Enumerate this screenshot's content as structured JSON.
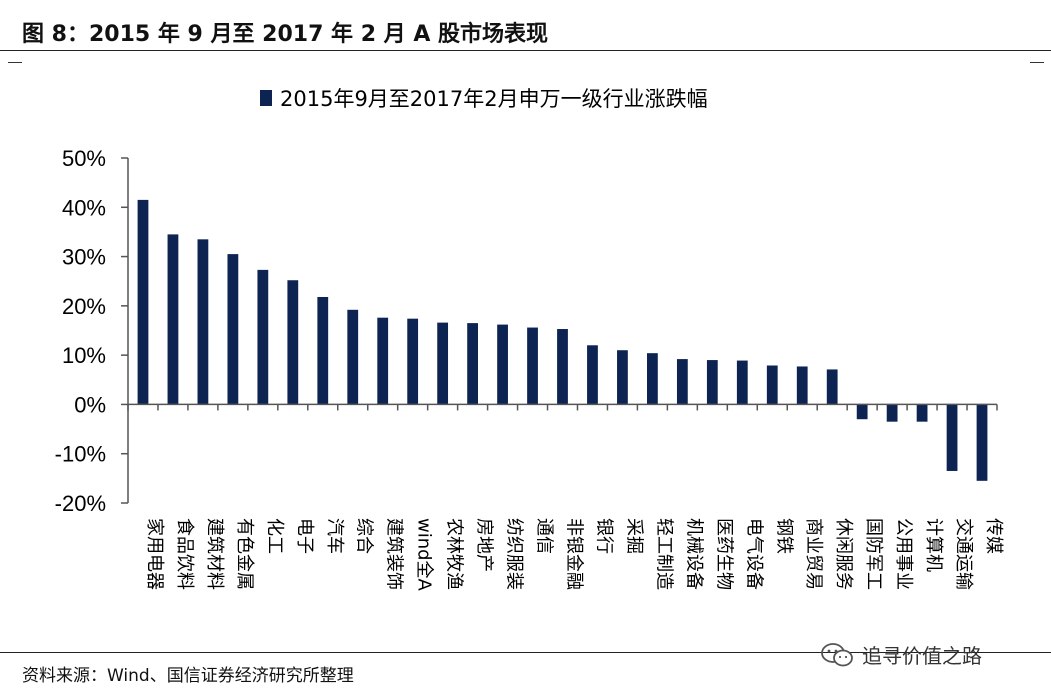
{
  "figure": {
    "title": "图 8：2015 年 9 月至 2017 年 2 月 A 股市场表现",
    "source": "资料来源：Wind、国信证券经济研究所整理",
    "watermark": "追寻价值之路",
    "watermark_icon": "wechat-icon"
  },
  "chart_data": {
    "type": "bar",
    "legend_position": "top-center",
    "grid": false,
    "color": "#0d2453",
    "series": [
      {
        "name": "2015年9月至2017年2月申万一级行业涨跌幅",
        "values": [
          41.5,
          34.5,
          33.5,
          30.5,
          27.3,
          25.2,
          21.8,
          19.2,
          17.6,
          17.4,
          16.6,
          16.5,
          16.2,
          15.6,
          15.3,
          12.0,
          11.0,
          10.4,
          9.2,
          9.0,
          8.9,
          7.9,
          7.7,
          7.1,
          -3.0,
          -3.5,
          -3.5,
          -13.5,
          -15.5
        ]
      }
    ],
    "categories": [
      "家用电器",
      "食品饮料",
      "建筑材料",
      "有色金属",
      "化工",
      "电子",
      "汽车",
      "综合",
      "建筑装饰",
      "wind全A",
      "农林牧渔",
      "房地产",
      "纺织服装",
      "通信",
      "非银金融",
      "银行",
      "采掘",
      "轻工制造",
      "机械设备",
      "医药生物",
      "电气设备",
      "钢铁",
      "商业贸易",
      "休闲服务",
      "国防军工",
      "公用事业",
      "计算机",
      "交通运输",
      "传媒"
    ],
    "ylim": [
      -20,
      50
    ],
    "yticks": [
      -20,
      -10,
      0,
      10,
      20,
      30,
      40,
      50
    ],
    "ytick_labels": [
      "-20%",
      "-10%",
      "0%",
      "10%",
      "20%",
      "30%",
      "40%",
      "50%"
    ],
    "xlabel": "",
    "ylabel": ""
  }
}
